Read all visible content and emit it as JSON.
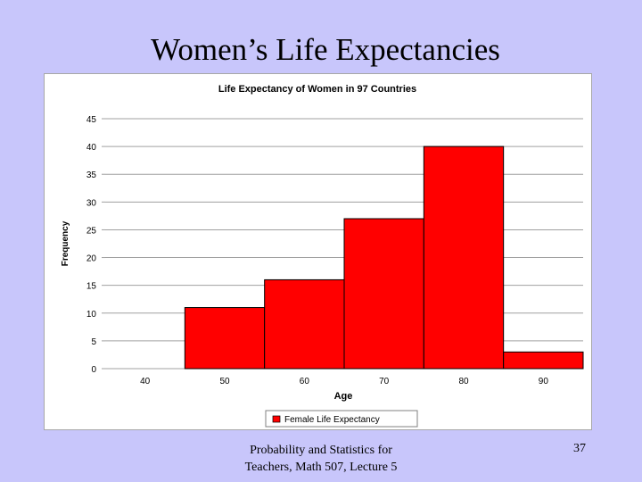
{
  "slide": {
    "title": "Women’s Life Expectancies",
    "footer_line1": "Probability and Statistics for",
    "footer_line2": "Teachers, Math 507, Lecture 5",
    "page_number": "37"
  },
  "chart_data": {
    "type": "bar",
    "title": "Life Expectancy of Women in 97 Countries",
    "xlabel": "Age",
    "ylabel": "Frequency",
    "categories": [
      "40",
      "50",
      "60",
      "70",
      "80",
      "90"
    ],
    "series": [
      {
        "name": "Female Life Expectancy",
        "values": [
          0,
          11,
          16,
          27,
          40,
          3
        ]
      }
    ],
    "ylim": [
      0,
      45
    ],
    "yticks": [
      "0",
      "5",
      "10",
      "15",
      "20",
      "25",
      "30",
      "35",
      "40",
      "45"
    ],
    "grid": true,
    "legend": "bottom-center",
    "colors": {
      "bar": "#ff0000",
      "bar_stroke": "#000000",
      "grid": "#a0a0a0"
    }
  }
}
